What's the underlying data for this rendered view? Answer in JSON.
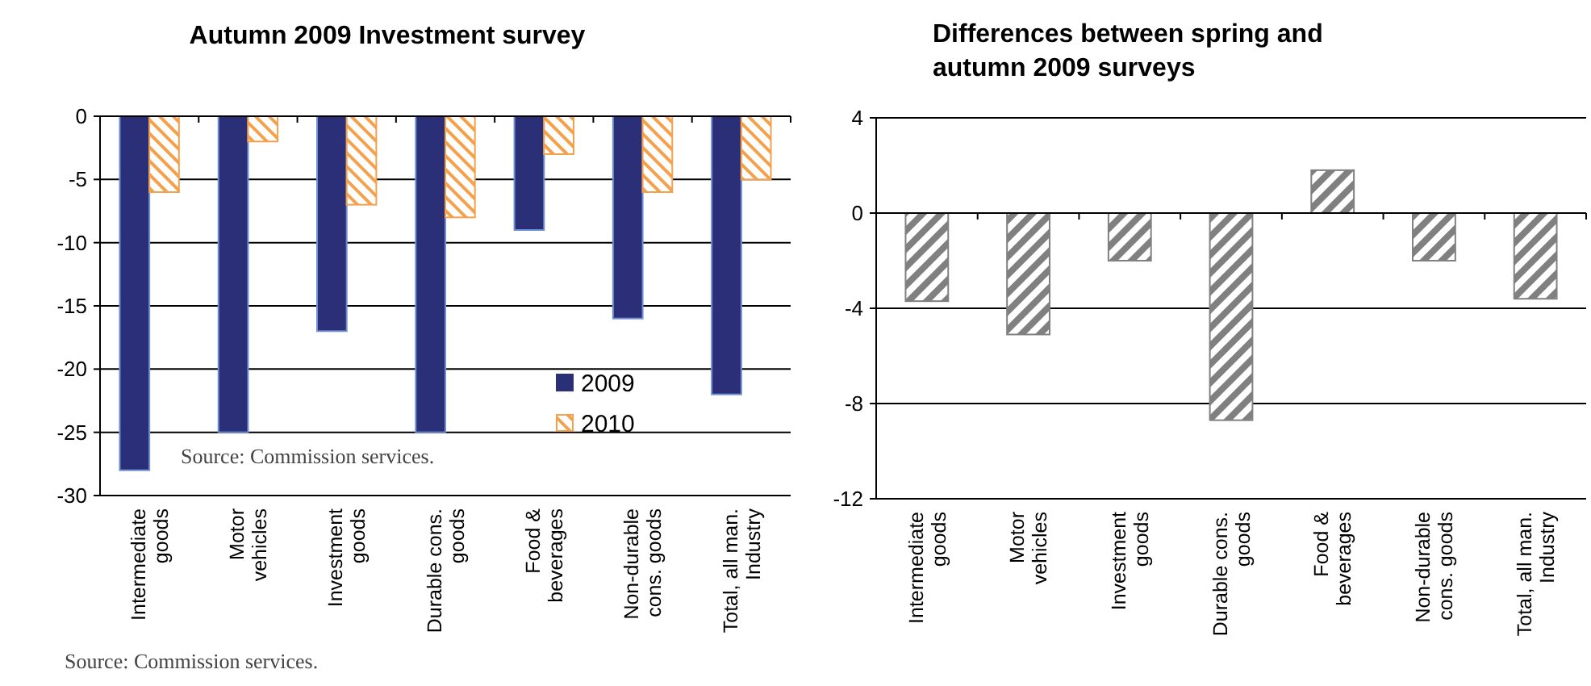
{
  "chart_data": [
    {
      "type": "bar",
      "title": "Autumn 2009 Investment survey",
      "categories": [
        "Intermediate\ngoods",
        "Motor\nvehicles",
        "Investment\ngoods",
        "Durable cons.\ngoods",
        "Food &\nbeverages",
        "Non-durable\ncons. goods",
        "Total, all man.\nIndustry"
      ],
      "series": [
        {
          "name": "2009",
          "color": "#2b2f78",
          "values": [
            -28,
            -25,
            -17,
            -25,
            -9,
            -16,
            -22
          ]
        },
        {
          "name": "2010",
          "color": "#f5a04a",
          "values": [
            -6,
            -2,
            -7,
            -8,
            -3,
            -6,
            -5
          ]
        }
      ],
      "ylim": [
        -30,
        0
      ],
      "yticks": [
        -30,
        -25,
        -20,
        -15,
        -10,
        -5,
        0
      ],
      "grid": "y",
      "legend": "bottom right",
      "annotations": [
        "Source: Commission services.",
        "Source: Commission services."
      ]
    },
    {
      "type": "bar",
      "title": "Differences between spring and\nautumn 2009 surveys",
      "categories": [
        "Intermediate\ngoods",
        "Motor\nvehicles",
        "Investment\ngoods",
        "Durable cons.\ngoods",
        "Food &\nbeverages",
        "Non-durable\ncons. goods",
        "Total, all man.\nIndustry"
      ],
      "values": [
        -3.7,
        -5.1,
        -2.0,
        -8.7,
        1.8,
        -2.0,
        -3.6
      ],
      "color": "#808080",
      "ylim": [
        -12,
        4
      ],
      "yticks": [
        -12,
        -8,
        -4,
        0,
        4
      ],
      "grid": "y"
    }
  ]
}
